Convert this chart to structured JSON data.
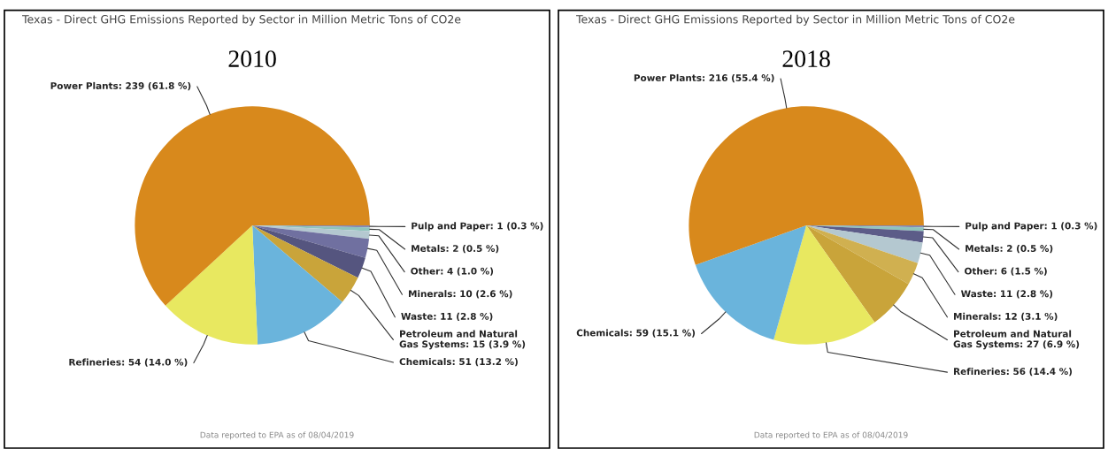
{
  "chart_data": [
    {
      "type": "pie",
      "title": "Texas - Direct GHG Emissions Reported by Sector in Million Metric Tons of CO2e",
      "subtitle": "2010",
      "categories": [
        "Pulp and Paper",
        "Metals",
        "Other",
        "Minerals",
        "Waste",
        "Petroleum and Natural Gas Systems",
        "Chemicals",
        "Refineries",
        "Power Plants"
      ],
      "values": [
        1,
        2,
        4,
        10,
        11,
        15,
        51,
        54,
        239
      ],
      "value_labels": [
        "1 (0.3 %)",
        "2 (0.5 %)",
        "4 (1.0 %)",
        "10 (2.6 %)",
        "11 (2.8 %)",
        "15 (3.9 %)",
        "51 (13.2 %)",
        "54 (14.0 %)",
        "239 (61.8 %)"
      ],
      "colors": [
        "#8888b0",
        "#8fc4bc",
        "#b4c8d0",
        "#7070a0",
        "#55557f",
        "#c9a43a",
        "#6ab4dc",
        "#e8e860",
        "#d8891c"
      ],
      "annotations": [
        "Data reported to EPA as of 08/04/2019"
      ],
      "legend": false
    },
    {
      "type": "pie",
      "title": "Texas - Direct GHG Emissions Reported by Sector in Million Metric Tons of CO2e",
      "subtitle": "2018",
      "categories": [
        "Pulp and Paper",
        "Metals",
        "Other",
        "Waste",
        "Minerals",
        "Petroleum and Natural Gas Systems",
        "Refineries",
        "Chemicals",
        "Power Plants"
      ],
      "values": [
        1,
        2,
        6,
        11,
        12,
        27,
        56,
        59,
        216
      ],
      "value_labels": [
        "1 (0.3 %)",
        "2 (0.5 %)",
        "6 (1.5 %)",
        "11 (2.8 %)",
        "12 (3.1 %)",
        "27 (6.9 %)",
        "56 (14.4 %)",
        "59 (15.1 %)",
        "216 (55.4 %)"
      ],
      "colors": [
        "#8888b0",
        "#8fc4bc",
        "#5c5c88",
        "#b4c8d0",
        "#d0b050",
        "#c9a43a",
        "#e8e860",
        "#6ab4dc",
        "#d8891c"
      ],
      "annotations": [
        "Data reported to EPA as of 08/04/2019"
      ],
      "legend": false
    }
  ]
}
